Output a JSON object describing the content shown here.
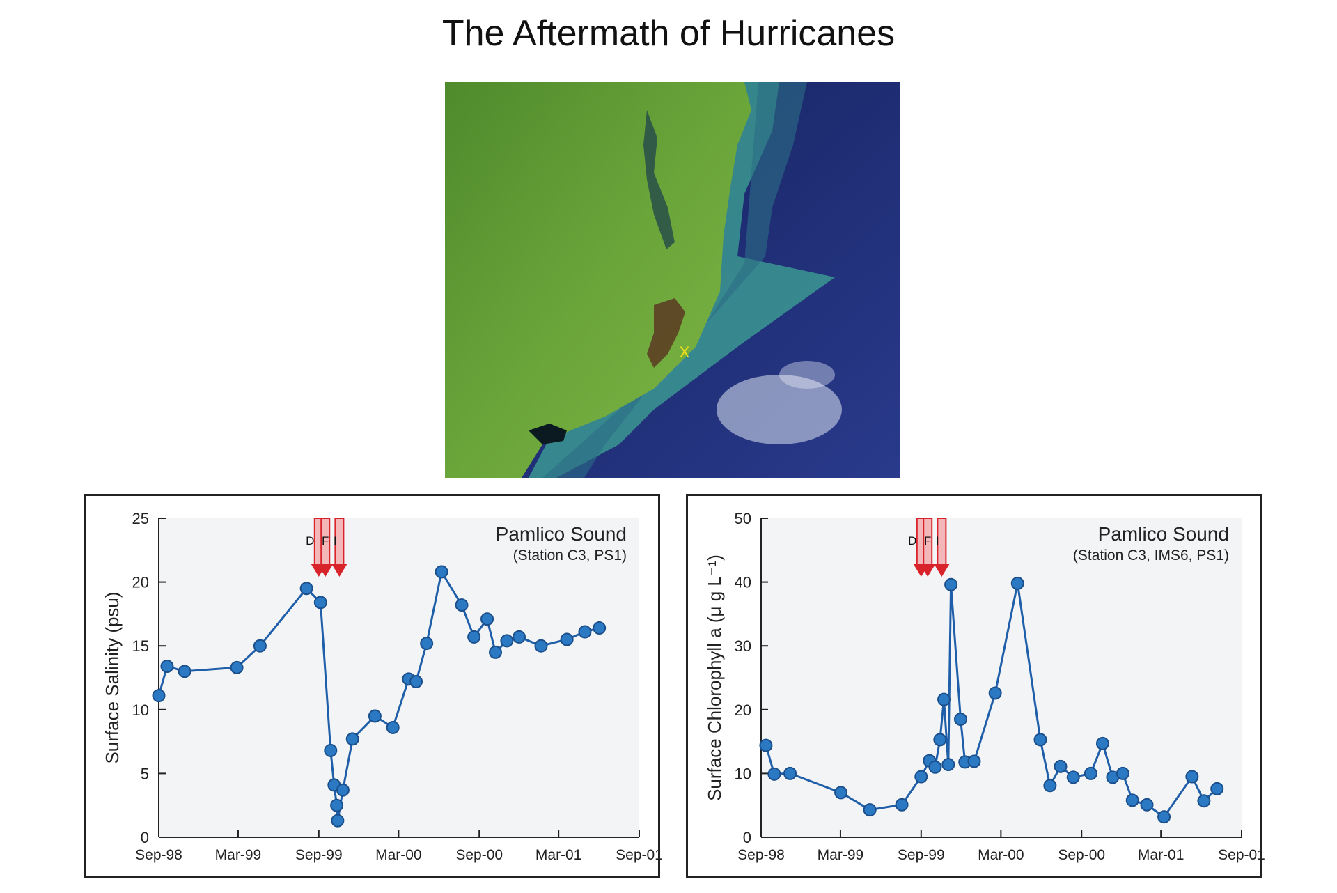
{
  "title": "The Aftermath of Hurricanes",
  "map": {
    "marker_label": "X",
    "colors": {
      "land": "#5e9a2e",
      "ocean": "#1a2a7a",
      "sediment": "#4fb3a0",
      "marker": "#f2e21a"
    }
  },
  "colors": {
    "line": "#1f5ea8",
    "point": "#2b79c2",
    "point_edge": "#1a4f8c",
    "plot_bg": "#f3f4f6",
    "arrow": "#d9232a",
    "arrow_light": "#f4b7b9"
  },
  "x_ticks": [
    "Sep-98",
    "Mar-99",
    "Sep-99",
    "Mar-00",
    "Sep-00",
    "Mar-01",
    "Sep-01"
  ],
  "hurricane_labels": [
    "D",
    "F",
    "I"
  ],
  "chart_data": [
    {
      "type": "line",
      "title": "Pamlico Sound",
      "subtitle": "(Station C3, PS1)",
      "ylabel": "Surface Salinity (psu)",
      "xlim": [
        "1998-09-01",
        "2001-09-01"
      ],
      "ylim": [
        0,
        25
      ],
      "yticks": [
        0,
        5,
        10,
        15,
        20,
        25
      ],
      "grid": false,
      "hurricanes": [
        {
          "label": "D",
          "date": "1999-09-01"
        },
        {
          "label": "F",
          "date": "1999-09-16"
        },
        {
          "label": "I",
          "date": "1999-10-18"
        }
      ],
      "points": [
        {
          "x": "1998-09-01",
          "y": 11.1
        },
        {
          "x": "1998-09-20",
          "y": 13.4
        },
        {
          "x": "1998-10-30",
          "y": 13.0
        },
        {
          "x": "1999-02-26",
          "y": 13.3
        },
        {
          "x": "1999-04-20",
          "y": 15.0
        },
        {
          "x": "1999-08-04",
          "y": 19.5
        },
        {
          "x": "1999-09-05",
          "y": 18.4
        },
        {
          "x": "1999-09-28",
          "y": 6.8
        },
        {
          "x": "1999-10-06",
          "y": 4.1
        },
        {
          "x": "1999-10-12",
          "y": 2.5
        },
        {
          "x": "1999-10-14",
          "y": 1.3
        },
        {
          "x": "1999-10-26",
          "y": 3.7
        },
        {
          "x": "1999-11-17",
          "y": 7.7
        },
        {
          "x": "2000-01-07",
          "y": 9.5
        },
        {
          "x": "2000-02-17",
          "y": 8.6
        },
        {
          "x": "2000-03-24",
          "y": 12.4
        },
        {
          "x": "2000-04-10",
          "y": 12.2
        },
        {
          "x": "2000-05-04",
          "y": 15.2
        },
        {
          "x": "2000-06-07",
          "y": 20.8
        },
        {
          "x": "2000-07-23",
          "y": 18.2
        },
        {
          "x": "2000-08-20",
          "y": 15.7
        },
        {
          "x": "2000-09-19",
          "y": 17.1
        },
        {
          "x": "2000-10-08",
          "y": 14.5
        },
        {
          "x": "2000-11-03",
          "y": 15.4
        },
        {
          "x": "2000-12-01",
          "y": 15.7
        },
        {
          "x": "2001-01-20",
          "y": 15.0
        },
        {
          "x": "2001-03-20",
          "y": 15.5
        },
        {
          "x": "2001-04-30",
          "y": 16.1
        },
        {
          "x": "2001-06-02",
          "y": 16.4
        }
      ]
    },
    {
      "type": "line",
      "title": "Pamlico Sound",
      "subtitle": "(Station C3, IMS6, PS1)",
      "ylabel": "Surface Chlorophyll a (μ g L⁻¹)",
      "xlim": [
        "1998-09-01",
        "2001-09-01"
      ],
      "ylim": [
        0,
        50
      ],
      "yticks": [
        0,
        10,
        20,
        30,
        40,
        50
      ],
      "grid": false,
      "hurricanes": [
        {
          "label": "D",
          "date": "1999-09-01"
        },
        {
          "label": "F",
          "date": "1999-09-16"
        },
        {
          "label": "I",
          "date": "1999-10-18"
        }
      ],
      "points": [
        {
          "x": "1998-09-12",
          "y": 14.4
        },
        {
          "x": "1998-10-01",
          "y": 9.9
        },
        {
          "x": "1998-11-06",
          "y": 10.0
        },
        {
          "x": "1999-03-02",
          "y": 7.0
        },
        {
          "x": "1999-05-07",
          "y": 4.3
        },
        {
          "x": "1999-07-19",
          "y": 5.1
        },
        {
          "x": "1999-09-01",
          "y": 9.5
        },
        {
          "x": "1999-09-20",
          "y": 12.0
        },
        {
          "x": "1999-10-03",
          "y": 11.0
        },
        {
          "x": "1999-10-14",
          "y": 15.3
        },
        {
          "x": "1999-10-23",
          "y": 21.6
        },
        {
          "x": "1999-11-02",
          "y": 11.4
        },
        {
          "x": "1999-11-08",
          "y": 39.6
        },
        {
          "x": "1999-11-30",
          "y": 18.5
        },
        {
          "x": "1999-12-10",
          "y": 11.8
        },
        {
          "x": "1999-12-31",
          "y": 11.9
        },
        {
          "x": "2000-02-17",
          "y": 22.6
        },
        {
          "x": "2000-04-08",
          "y": 39.8
        },
        {
          "x": "2000-05-30",
          "y": 15.3
        },
        {
          "x": "2000-06-21",
          "y": 8.1
        },
        {
          "x": "2000-07-15",
          "y": 11.1
        },
        {
          "x": "2000-08-13",
          "y": 9.4
        },
        {
          "x": "2000-09-22",
          "y": 10.0
        },
        {
          "x": "2000-10-19",
          "y": 14.7
        },
        {
          "x": "2000-11-11",
          "y": 9.4
        },
        {
          "x": "2000-12-04",
          "y": 10.0
        },
        {
          "x": "2000-12-26",
          "y": 5.8
        },
        {
          "x": "2001-01-28",
          "y": 5.1
        },
        {
          "x": "2001-03-08",
          "y": 3.2
        },
        {
          "x": "2001-05-11",
          "y": 9.5
        },
        {
          "x": "2001-06-07",
          "y": 5.7
        },
        {
          "x": "2001-07-07",
          "y": 7.6
        }
      ]
    }
  ]
}
